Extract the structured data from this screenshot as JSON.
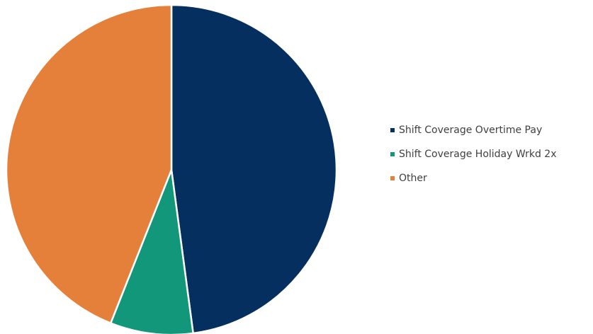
{
  "chart_data": {
    "type": "pie",
    "title": "",
    "legend_position": "right",
    "start_angle": "12 o'clock, clockwise",
    "series": [
      {
        "name": "",
        "slices": [
          {
            "label": "Shift Coverage Overtime Pay",
            "value": 47.9,
            "color": "#042F5E"
          },
          {
            "label": "Shift Coverage Holiday Wrkd 2x",
            "value": 8.1,
            "color": "#13977A"
          },
          {
            "label": "Other",
            "value": 44.0,
            "color": "#E5803A"
          }
        ]
      }
    ],
    "legend": [
      {
        "label": "Shift Coverage Overtime Pay",
        "color": "#042F5E"
      },
      {
        "label": "Shift Coverage Holiday Wrkd 2x",
        "color": "#13977A"
      },
      {
        "label": "Other",
        "color": "#E5803A"
      }
    ]
  }
}
